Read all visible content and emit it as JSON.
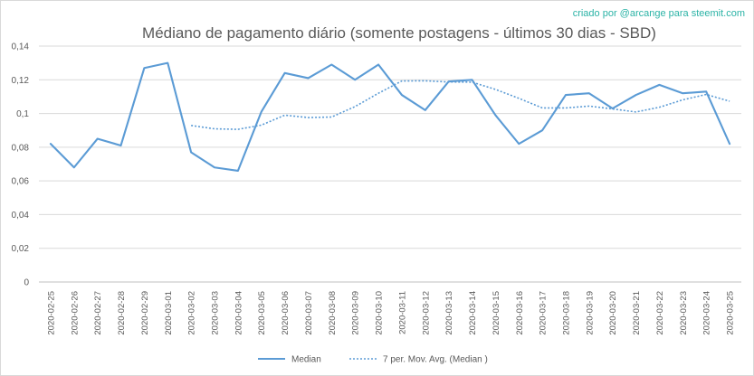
{
  "chart_data": {
    "type": "line",
    "title": "Médiano de pagamento diário (somente postagens - últimos 30 dias - SBD)",
    "credit": "criado por @arcange para steemit.com",
    "xlabel": "",
    "ylabel": "",
    "ylim": [
      0,
      0.14
    ],
    "yticks": [
      "0",
      "0,02",
      "0,04",
      "0,06",
      "0,08",
      "0,1",
      "0,12",
      "0,14"
    ],
    "ytick_values": [
      0,
      0.02,
      0.04,
      0.06,
      0.08,
      0.1,
      0.12,
      0.14
    ],
    "grid": "horizontal",
    "legend_position": "bottom",
    "categories": [
      "2020-02-25",
      "2020-02-26",
      "2020-02-27",
      "2020-02-28",
      "2020-02-29",
      "2020-03-01",
      "2020-03-02",
      "2020-03-03",
      "2020-03-04",
      "2020-03-05",
      "2020-03-06",
      "2020-03-07",
      "2020-03-08",
      "2020-03-09",
      "2020-03-10",
      "2020-03-11",
      "2020-03-12",
      "2020-03-13",
      "2020-03-14",
      "2020-03-15",
      "2020-03-16",
      "2020-03-17",
      "2020-03-18",
      "2020-03-19",
      "2020-03-20",
      "2020-03-21",
      "2020-03-22",
      "2020-03-23",
      "2020-03-24",
      "2020-03-25"
    ],
    "series": [
      {
        "name": "Median",
        "style": "solid",
        "color": "#5b9bd5",
        "values": [
          0.082,
          0.068,
          0.085,
          0.081,
          0.127,
          0.13,
          0.077,
          0.068,
          0.066,
          0.101,
          0.124,
          0.121,
          0.129,
          0.12,
          0.129,
          0.111,
          0.102,
          0.119,
          0.12,
          0.099,
          0.082,
          0.09,
          0.111,
          0.112,
          0.103,
          0.111,
          0.117,
          0.112,
          0.113,
          0.082
        ]
      },
      {
        "name": "7 per. Mov. Avg. (Median )",
        "style": "dotted",
        "color": "#5b9bd5",
        "values": [
          null,
          null,
          null,
          null,
          null,
          null,
          0.0929,
          0.0909,
          0.0906,
          0.0931,
          0.099,
          0.0976,
          0.0979,
          0.1041,
          0.112,
          0.1193,
          0.1194,
          0.1187,
          0.1186,
          0.1143,
          0.109,
          0.1033,
          0.1033,
          0.1044,
          0.1027,
          0.1009,
          0.1037,
          0.1081,
          0.1113,
          0.1073
        ]
      }
    ]
  }
}
